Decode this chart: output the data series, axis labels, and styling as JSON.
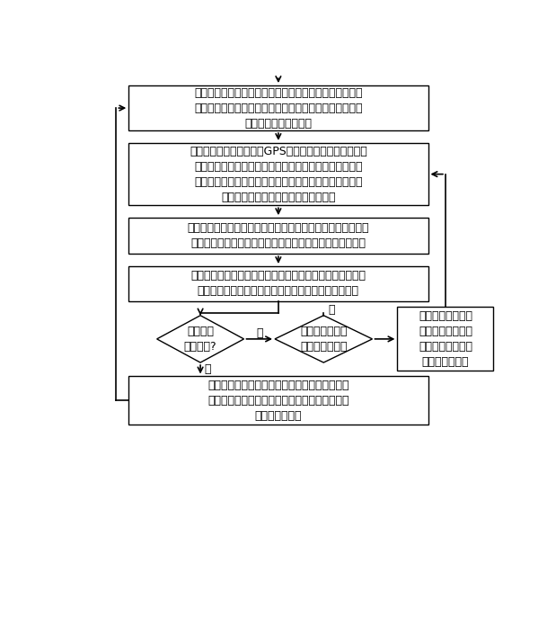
{
  "bg_color": "#ffffff",
  "box_edge_color": "#000000",
  "font_size": 9,
  "box1_text": "车载无线通信终端从当前连接的无线接入点获取邻居无线\n接入点的信息并存储，所述邻居无线接入点的信息中包括\n其自身的地理位置信息",
  "box2_text": "车载无线通信终端根据其GPS导航系统提供的自身地理位\n置信息和目的路线，以及获取的邻居无线接入点的地理位\n置信息，从邻居无线接入点中计算选取和目的路线的方向\n一致的无线接入点作为候选无线接入点",
  "box3_text": "车载无线通信终端从候选无线接入点中计算选取与所述目的路\n线距离最短的无线接入点，作为下一跳需连接的无线接入点",
  "box4_text": "车载无线通信终端在小区切换前，将切换时所需发送的信息\n发送到所述下一跳需连接的无线接入点，做好切换准备",
  "diamond1_text": "是否触发\n切换门限?",
  "diamond2_text": "车辆的速率是否\n超过一定的阈值",
  "box5_text": "直接发送切换请求到所述下一跳需连接的无线接\n入点，完成切换，删除本地存储的当前连接的无\n线接入点的信息",
  "box6_text": "发送请求邻居信息\n的消息到当前最新\n得到的下一跳需连\n接的无线接入点",
  "label_no1": "否",
  "label_no2": "否",
  "label_yes": "是"
}
